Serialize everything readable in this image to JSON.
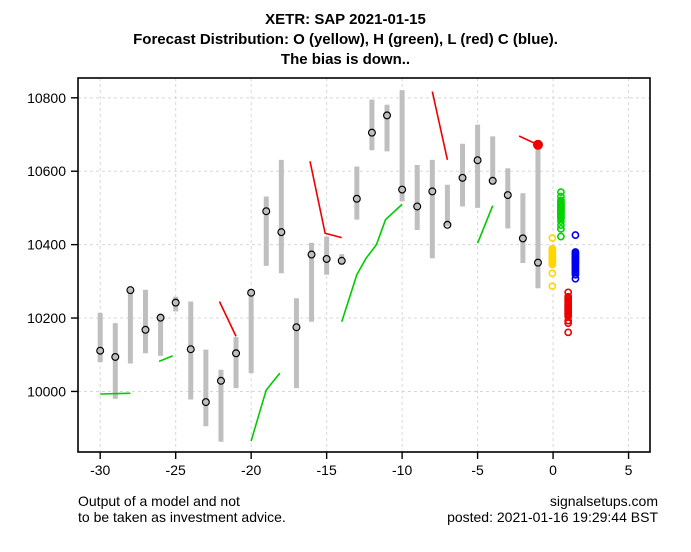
{
  "header": {
    "line1": "XETR: SAP 2021-01-15",
    "line2": "Forecast Distribution: O (yellow), H (green), L (red) C (blue).",
    "line3": "The bias is down.."
  },
  "footer": {
    "left_line1": "Output of a model and not",
    "left_line2": "to be taken as investment advice.",
    "right_line1": "signalsetups.com",
    "right_line2": "posted: 2021-01-16 19:29:44 BST"
  },
  "chart_data": {
    "type": "ohlc-bar-forecast-scatter",
    "title": "XETR: SAP 2021-01-15",
    "x_axis": {
      "tick_values": [
        -30,
        -25,
        -20,
        -15,
        -10,
        -5,
        0,
        5
      ],
      "tick_labels": [
        "-30",
        "-25",
        "-20",
        "-15",
        "-10",
        "-5",
        "0",
        "5"
      ],
      "xlim": [
        -31.47,
        6.42
      ]
    },
    "y_axis": {
      "tick_values": [
        10000,
        10200,
        10400,
        10600,
        10800
      ],
      "tick_labels": [
        "10000",
        "10200",
        "10400",
        "10600",
        "10800"
      ],
      "ylim": [
        9835,
        10854
      ]
    },
    "grid": true,
    "legend_position": "none",
    "colors": {
      "bar": "#BFBFBF",
      "close_circle": "#000000",
      "grid": "#D8D8D8",
      "green_line": "#00CC00",
      "red_line": "#EE0000",
      "open_forecast": "#FFD700",
      "high_forecast": "#00D400",
      "low_forecast": "#EE0000",
      "close_forecast": "#0000EE",
      "marker": "#EE0000"
    },
    "bars_format": "x, low, high, close",
    "bars": [
      [
        -30,
        10080,
        10214,
        10111
      ],
      [
        -29,
        9980,
        10186,
        10094
      ],
      [
        -28,
        10076,
        10281,
        10276
      ],
      [
        -27,
        10104,
        10277,
        10168
      ],
      [
        -26,
        10097,
        10209,
        10201
      ],
      [
        -25,
        10218,
        10258,
        10242
      ],
      [
        -24,
        9978,
        10245,
        10115
      ],
      [
        -23,
        9905,
        10114,
        9971
      ],
      [
        -22,
        9863,
        10059,
        10029
      ],
      [
        -21,
        10009,
        10148,
        10104
      ],
      [
        -20,
        10050,
        10277,
        10269
      ],
      [
        -19,
        10342,
        10531,
        10491
      ],
      [
        -18,
        10322,
        10631,
        10434
      ],
      [
        -17,
        10009,
        10254,
        10175
      ],
      [
        -16,
        10190,
        10405,
        10373
      ],
      [
        -15,
        10318,
        10422,
        10361
      ],
      [
        -14,
        10345,
        10374,
        10356
      ],
      [
        -13,
        10468,
        10613,
        10525
      ],
      [
        -12,
        10657,
        10795,
        10705
      ],
      [
        -11,
        10654,
        10781,
        10752
      ],
      [
        -10,
        10518,
        10821,
        10550
      ],
      [
        -9,
        10440,
        10617,
        10504
      ],
      [
        -8,
        10363,
        10631,
        10545
      ],
      [
        -7,
        10450,
        10563,
        10454
      ],
      [
        -6,
        10504,
        10675,
        10582
      ],
      [
        -5,
        10500,
        10727,
        10630
      ],
      [
        -4,
        10563,
        10695,
        10574
      ],
      [
        -3,
        10444,
        10608,
        10535
      ],
      [
        -2,
        10350,
        10540,
        10417
      ],
      [
        -1,
        10281,
        10667,
        10351
      ]
    ],
    "green_segments": [
      [
        [
          -30,
          9993
        ],
        [
          -28,
          9995
        ]
      ],
      [
        [
          -26.1,
          10082
        ],
        [
          -25.2,
          10097
        ]
      ],
      [
        [
          -20,
          9865
        ],
        [
          -19.5,
          9935
        ],
        [
          -19,
          10004
        ],
        [
          -18.1,
          10050
        ]
      ],
      [
        [
          -14,
          10190
        ],
        [
          -13,
          10318
        ],
        [
          -12.4,
          10362
        ],
        [
          -11.7,
          10400
        ],
        [
          -11.1,
          10468
        ],
        [
          -10,
          10510
        ]
      ],
      [
        [
          -5,
          10404
        ],
        [
          -4,
          10506
        ]
      ]
    ],
    "red_segments": [
      [
        [
          -22.1,
          10245
        ],
        [
          -21,
          10150
        ]
      ],
      [
        [
          -16.1,
          10627
        ],
        [
          -15.1,
          10431
        ],
        [
          -14,
          10419
        ]
      ],
      [
        [
          -8,
          10817
        ],
        [
          -7,
          10631
        ]
      ],
      [
        [
          -2.25,
          10696
        ],
        [
          -1,
          10672
        ]
      ]
    ],
    "red_marker": {
      "x": -1,
      "y": 10672
    },
    "forecast_clusters": {
      "open": {
        "label": "O (yellow)",
        "x": -0.05,
        "values": [
          10418,
          10389,
          10385,
          10381,
          10377,
          10373,
          10369,
          10366,
          10363,
          10360,
          10357,
          10354,
          10350,
          10346,
          10322,
          10287
        ]
      },
      "high": {
        "label": "H (green)",
        "x": 0.52,
        "values": [
          10543,
          10531,
          10521,
          10517,
          10513,
          10510,
          10507,
          10504,
          10501,
          10498,
          10495,
          10492,
          10489,
          10486,
          10483,
          10479,
          10475,
          10472,
          10464,
          10453,
          10443,
          10422
        ]
      },
      "low": {
        "label": "L (red)",
        "x": 1.0,
        "values": [
          10270,
          10258,
          10253,
          10249,
          10245,
          10241,
          10237,
          10233,
          10229,
          10225,
          10221,
          10217,
          10213,
          10209,
          10205,
          10193,
          10186,
          10161
        ]
      },
      "close": {
        "label": "C (blue)",
        "x": 1.48,
        "values": [
          10426,
          10380,
          10376,
          10372,
          10368,
          10364,
          10360,
          10356,
          10352,
          10348,
          10344,
          10340,
          10336,
          10332,
          10328,
          10324,
          10318,
          10307
        ]
      }
    }
  }
}
